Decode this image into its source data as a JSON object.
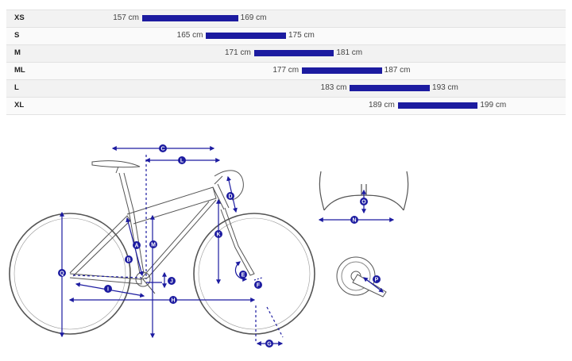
{
  "size_chart": {
    "bar_color": "#1c1ba0",
    "axis_range_cm": [
      140,
      210
    ],
    "rows": [
      {
        "size": "XS",
        "min": 157,
        "max": 169,
        "min_label": "157 cm",
        "max_label": "169 cm"
      },
      {
        "size": "S",
        "min": 165,
        "max": 175,
        "min_label": "165 cm",
        "max_label": "175 cm"
      },
      {
        "size": "M",
        "min": 171,
        "max": 181,
        "min_label": "171 cm",
        "max_label": "181 cm"
      },
      {
        "size": "ML",
        "min": 177,
        "max": 187,
        "min_label": "177 cm",
        "max_label": "187 cm"
      },
      {
        "size": "L",
        "min": 183,
        "max": 193,
        "min_label": "183 cm",
        "max_label": "193 cm"
      },
      {
        "size": "XL",
        "min": 189,
        "max": 199,
        "min_label": "189 cm",
        "max_label": "199 cm"
      }
    ]
  },
  "geometry": {
    "accent": "#1c1ba0",
    "markers": {
      "A": "A",
      "B": "B",
      "C": "C",
      "D": "D",
      "E": "E",
      "F": "F",
      "G": "G",
      "H": "H",
      "I": "I",
      "J": "J",
      "K": "K",
      "L": "L",
      "M": "M",
      "N": "N",
      "O": "O",
      "P": "P",
      "Q": "Q"
    }
  }
}
